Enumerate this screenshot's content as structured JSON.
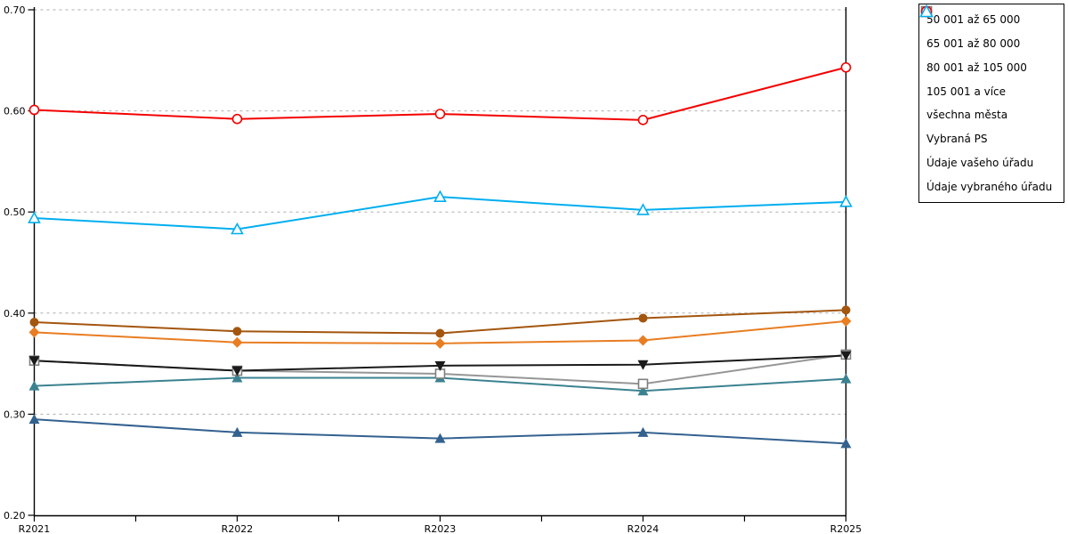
{
  "chart_data": {
    "type": "line",
    "title": "",
    "xlabel": "",
    "ylabel": "",
    "categories": [
      "R2021",
      "R2022",
      "R2023",
      "R2024",
      "R2025"
    ],
    "y_ticks": [
      0.2,
      0.3,
      0.4,
      0.5,
      0.6,
      0.7
    ],
    "ylim": [
      0.2,
      0.7
    ],
    "grid": "horizontal-dashed",
    "gridline_color": "#ADADAD",
    "legend_position": "top-right-outside",
    "series": [
      {
        "name": "50 001 až 65 000",
        "marker": "diamond",
        "fill": "solid",
        "color": "#E87D22",
        "values": [
          0.381,
          0.371,
          0.37,
          0.373,
          0.392
        ]
      },
      {
        "name": "65 001 až 80 000",
        "marker": "circle",
        "fill": "solid",
        "color": "#A3560E",
        "values": [
          0.391,
          0.382,
          0.38,
          0.395,
          0.403
        ]
      },
      {
        "name": "80 001 až 105 000",
        "marker": "triangle-up",
        "fill": "solid",
        "color": "#3B8290",
        "values": [
          0.328,
          0.336,
          0.336,
          0.323,
          0.335
        ]
      },
      {
        "name": "105 001 a více",
        "marker": "triangle-up",
        "fill": "solid",
        "color": "#33618F",
        "values": [
          0.295,
          0.282,
          0.276,
          0.282,
          0.271
        ]
      },
      {
        "name": "všechna města",
        "marker": "triangle-down",
        "fill": "solid",
        "color": "#1A1A1A",
        "values": [
          0.353,
          0.343,
          0.348,
          0.349,
          0.358
        ]
      },
      {
        "name": "Vybraná PS",
        "marker": "square",
        "fill": "open",
        "color": "#7F7F7F",
        "line_color": "#969696",
        "values": [
          0.353,
          0.343,
          0.34,
          0.33,
          0.359
        ]
      },
      {
        "name": "Údaje vašeho úřadu",
        "marker": "circle",
        "fill": "open",
        "color": "#F40000",
        "values": [
          0.601,
          0.592,
          0.597,
          0.591,
          0.643
        ]
      },
      {
        "name": "Údaje vybraného úřadu",
        "marker": "triangle-up",
        "fill": "open",
        "color": "#00AEEF",
        "values": [
          0.494,
          0.483,
          0.515,
          0.502,
          0.51
        ]
      }
    ]
  }
}
